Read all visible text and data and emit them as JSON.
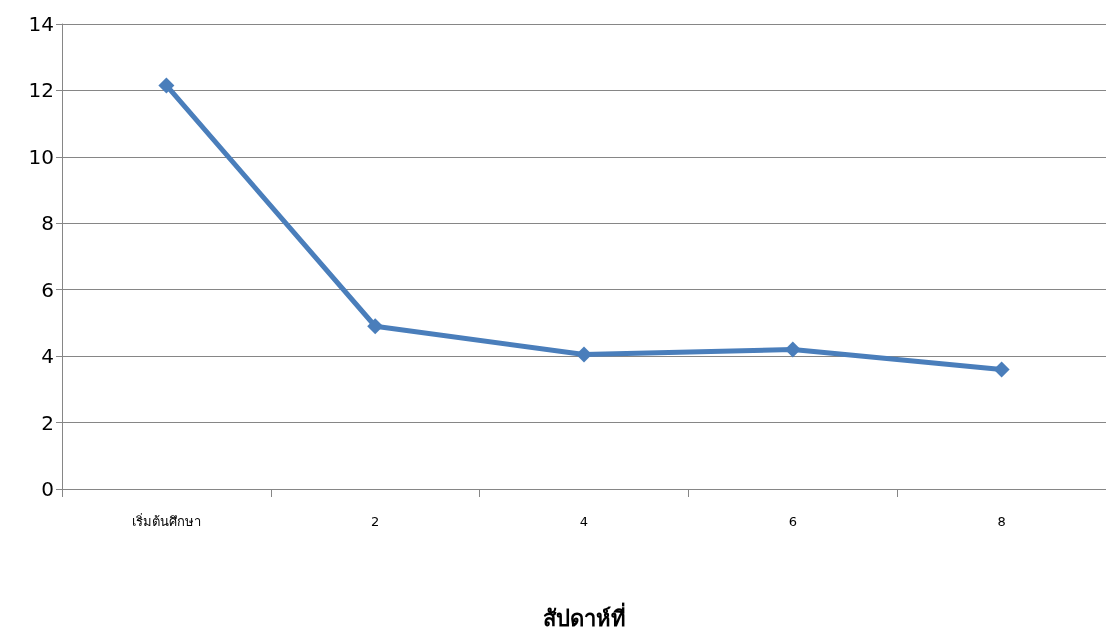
{
  "chart_data": {
    "type": "line",
    "xlabel": "สัปดาห์ที่",
    "categories": [
      "เริ่มต้นศึกษา",
      "2",
      "4",
      "6",
      "8"
    ],
    "series": [
      {
        "color": "#4a7ebb",
        "values": [
          12.15,
          4.9,
          4.05,
          4.2,
          3.6
        ]
      }
    ],
    "ylim": [
      0,
      14
    ],
    "yticks": [
      0,
      2,
      4,
      6,
      8,
      10,
      12,
      14
    ],
    "grid": "y",
    "marker": "diamond",
    "line_style": "solid"
  }
}
